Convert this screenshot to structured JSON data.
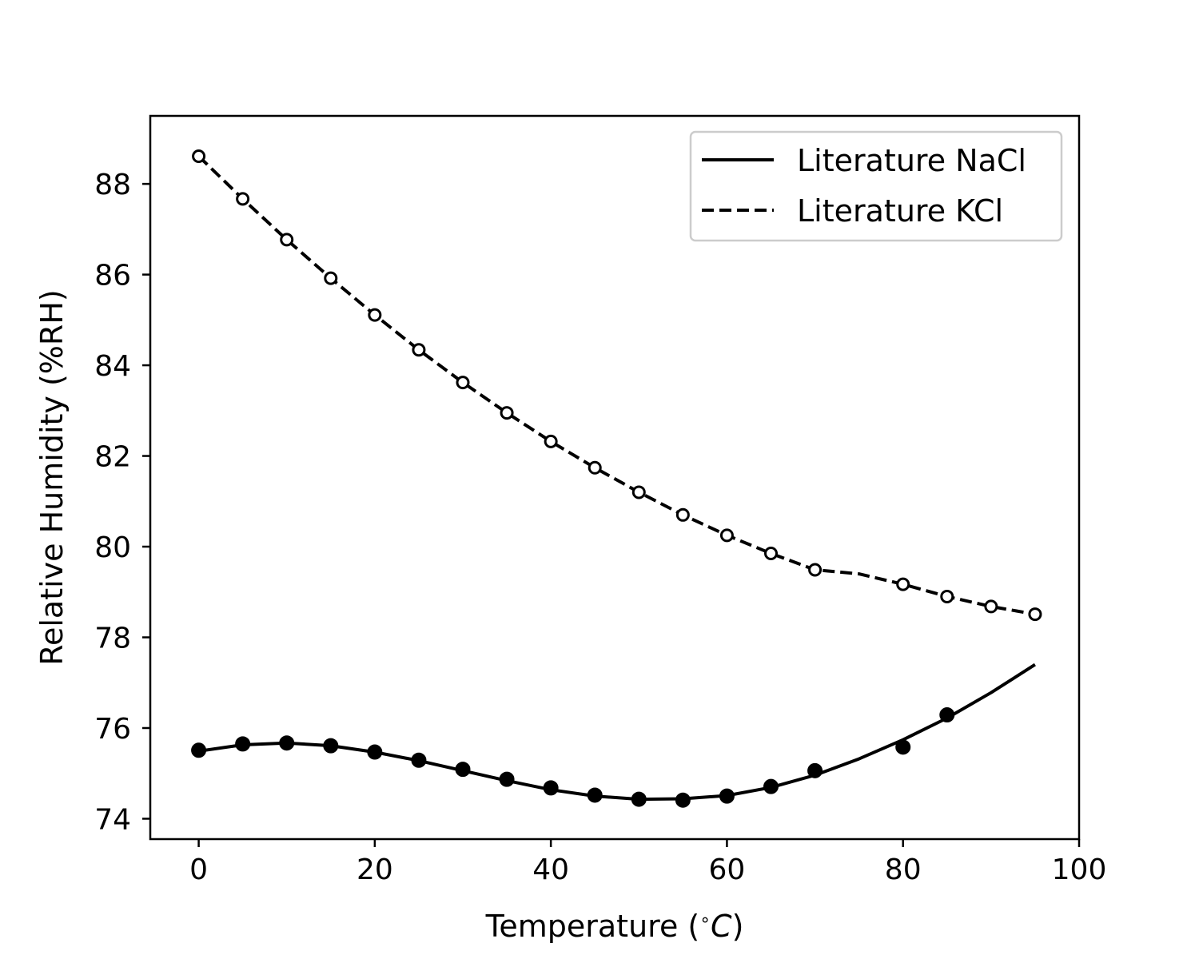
{
  "chart_data": {
    "type": "line",
    "xlabel_main": "Temperature (",
    "xlabel_unit": "∘",
    "xlabel_italic": "C",
    "xlabel_close": ")",
    "ylabel": "Relative Humidity (%RH)",
    "xlim": [
      -5.5,
      100
    ],
    "ylim": [
      73.55,
      89.5
    ],
    "xticks": [
      0,
      20,
      40,
      60,
      80,
      100
    ],
    "yticks": [
      74,
      76,
      78,
      80,
      82,
      84,
      86,
      88
    ],
    "grid": false,
    "legend_position": "top-right",
    "series": [
      {
        "name": "Literature NaCl",
        "line_style": "solid",
        "marker": "filled-circle",
        "color": "#000000",
        "curve_x": [
          0,
          5,
          10,
          15,
          20,
          25,
          30,
          35,
          40,
          45,
          50,
          55,
          60,
          65,
          70,
          75,
          80,
          85,
          90,
          95
        ],
        "curve_y": [
          75.49,
          75.63,
          75.67,
          75.61,
          75.47,
          75.28,
          75.06,
          74.84,
          74.64,
          74.5,
          74.43,
          74.44,
          74.51,
          74.69,
          74.96,
          75.32,
          75.74,
          76.22,
          76.78,
          77.4
        ],
        "points_x": [
          0,
          5,
          10,
          15,
          20,
          25,
          30,
          35,
          40,
          45,
          50,
          55,
          60,
          65,
          70,
          80,
          85
        ],
        "points_y": [
          75.51,
          75.65,
          75.67,
          75.61,
          75.47,
          75.29,
          75.09,
          74.87,
          74.68,
          74.52,
          74.43,
          74.41,
          74.5,
          74.71,
          75.06,
          75.58,
          76.29
        ]
      },
      {
        "name": "Literature KCl",
        "line_style": "dashed",
        "marker": "open-circle",
        "color": "#000000",
        "curve_x": [
          0,
          5,
          10,
          15,
          20,
          25,
          30,
          35,
          40,
          45,
          50,
          55,
          60,
          65,
          70,
          75,
          80,
          85,
          90,
          95
        ],
        "curve_y": [
          88.61,
          87.67,
          86.77,
          85.92,
          85.11,
          84.34,
          83.62,
          82.95,
          82.32,
          81.74,
          81.2,
          80.7,
          80.25,
          79.85,
          79.49,
          79.4,
          79.17,
          78.9,
          78.68,
          78.51
        ],
        "points_x": [
          0,
          5,
          10,
          15,
          20,
          25,
          30,
          35,
          40,
          45,
          50,
          55,
          60,
          65,
          70,
          80,
          85,
          90,
          95
        ],
        "points_y": [
          88.61,
          87.67,
          86.77,
          85.92,
          85.11,
          84.34,
          83.62,
          82.95,
          82.32,
          81.74,
          81.2,
          80.7,
          80.25,
          79.85,
          79.49,
          79.17,
          78.9,
          78.68,
          78.51
        ]
      }
    ]
  }
}
